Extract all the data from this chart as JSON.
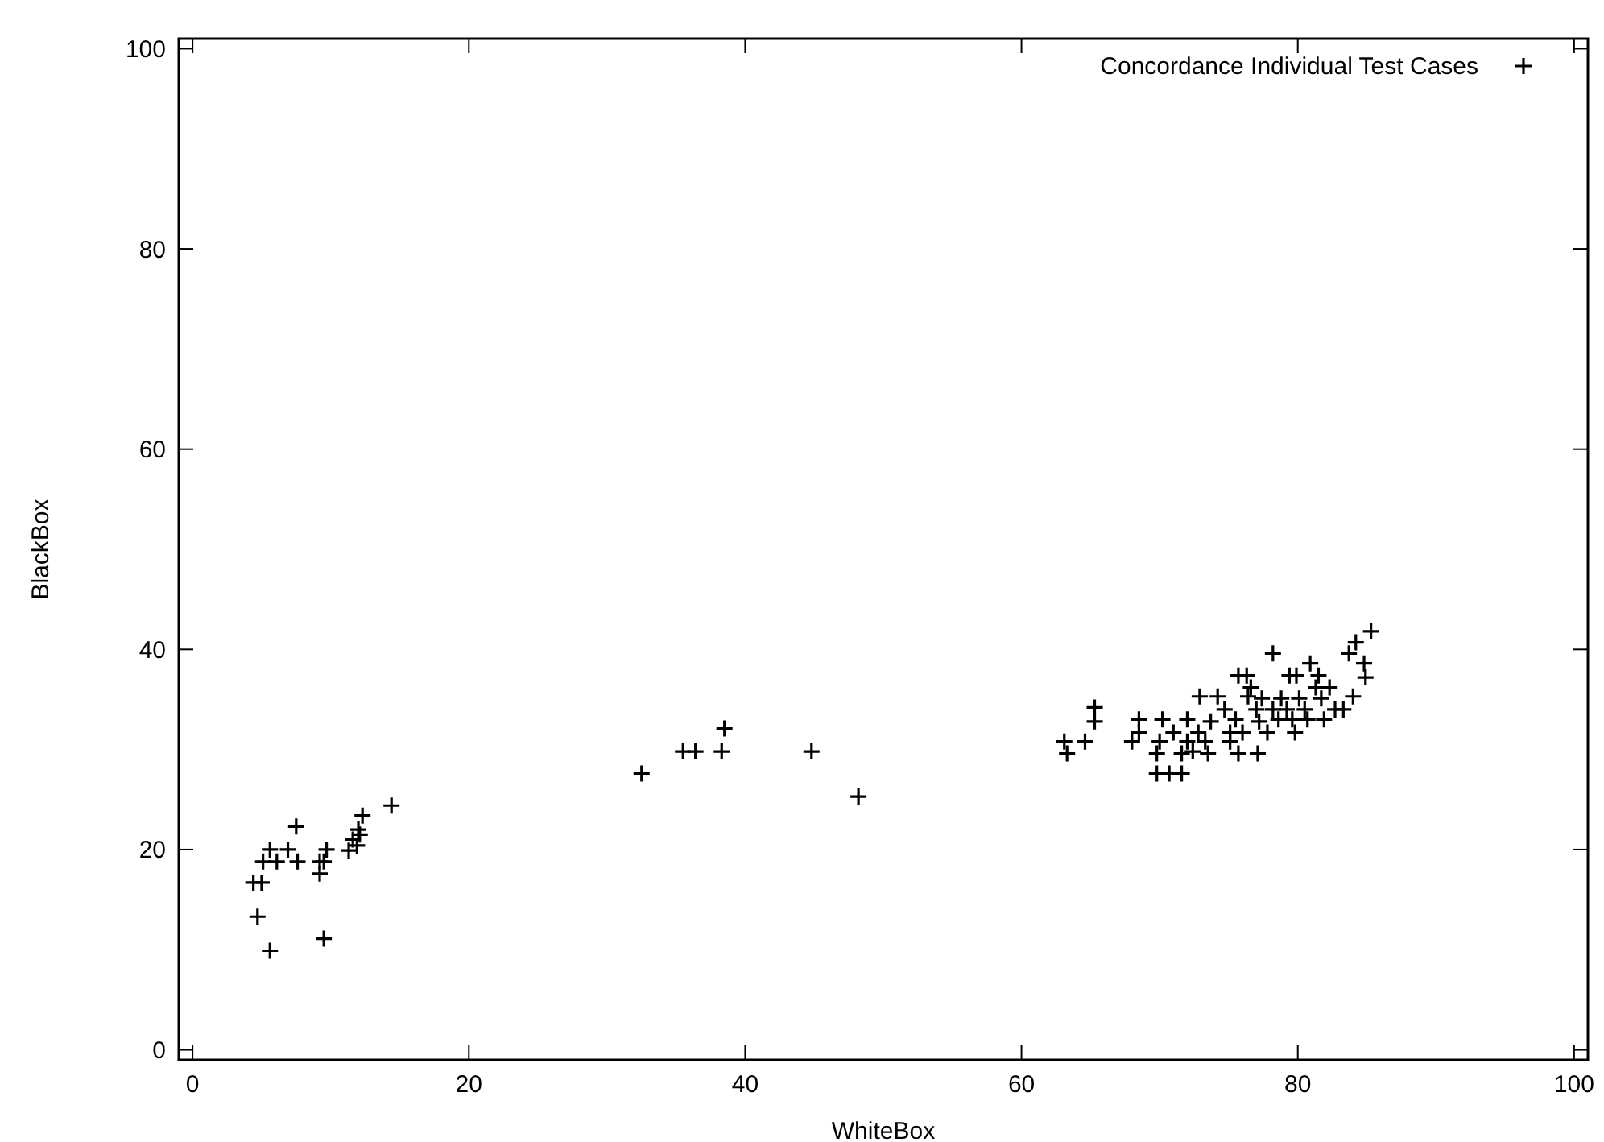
{
  "chart_data": {
    "type": "scatter",
    "xlabel": "WhiteBox",
    "ylabel": "BlackBox",
    "xlim": [
      -1,
      101
    ],
    "ylim": [
      -1,
      101
    ],
    "xticks": [
      0,
      20,
      40,
      60,
      80,
      100
    ],
    "yticks": [
      0,
      20,
      40,
      60,
      80,
      100
    ],
    "grid": false,
    "legend": "top right",
    "marker": "cross",
    "series": [
      {
        "name": "Concordance Individual Test Cases",
        "color": "#000000",
        "x": [
          4.4,
          5.0,
          4.7,
          5.6,
          5.1,
          6.1,
          5.6,
          6.9,
          7.5,
          7.6,
          9.7,
          9.2,
          9.5,
          9.2,
          9.5,
          11.3,
          11.6,
          12.0,
          12.3,
          11.9,
          12.1,
          14.4,
          32.5,
          35.5,
          36.4,
          38.3,
          38.5,
          44.8,
          48.2,
          63.1,
          63.3,
          64.6,
          65.3,
          65.3,
          68.0,
          68.5,
          68.5,
          69.8,
          70.0,
          70.2,
          69.8,
          70.7,
          71.6,
          71.0,
          71.6,
          72.0,
          72.0,
          72.4,
          72.9,
          72.8,
          73.3,
          73.5,
          73.7,
          74.2,
          74.7,
          75.1,
          75.5,
          75.7,
          75.1,
          75.7,
          76.3,
          76.0,
          76.4,
          76.6,
          77.0,
          77.1,
          77.2,
          77.4,
          77.8,
          78.2,
          78.2,
          78.6,
          78.8,
          79.2,
          79.4,
          79.6,
          79.8,
          79.9,
          80.1,
          80.5,
          80.7,
          80.9,
          81.3,
          81.5,
          81.7,
          81.9,
          82.3,
          82.7,
          83.3,
          84.0,
          83.7,
          84.2,
          84.8,
          84.9,
          85.3
        ],
        "values": [
          16.7,
          16.7,
          13.3,
          9.9,
          18.8,
          18.8,
          20.0,
          20.0,
          22.3,
          18.8,
          20.0,
          18.8,
          11.1,
          17.6,
          18.8,
          19.9,
          21.0,
          22.0,
          23.4,
          20.4,
          21.5,
          24.4,
          27.6,
          29.8,
          29.8,
          29.8,
          32.1,
          29.8,
          25.3,
          30.8,
          29.6,
          30.8,
          34.2,
          32.8,
          30.8,
          33.0,
          31.7,
          29.6,
          30.8,
          33.0,
          27.6,
          27.6,
          27.6,
          31.7,
          29.6,
          33.0,
          30.8,
          29.8,
          35.3,
          31.7,
          30.8,
          29.6,
          32.8,
          35.3,
          34.0,
          31.7,
          33.0,
          29.6,
          30.8,
          37.4,
          37.4,
          31.7,
          35.3,
          36.2,
          34.0,
          29.6,
          32.8,
          35.1,
          31.7,
          39.6,
          34.0,
          33.0,
          35.1,
          34.0,
          37.4,
          33.0,
          31.7,
          37.4,
          35.1,
          34.0,
          33.0,
          38.6,
          36.2,
          37.4,
          35.1,
          33.0,
          36.2,
          34.0,
          34.0,
          35.3,
          39.6,
          40.7,
          38.6,
          37.2,
          41.8
        ]
      }
    ]
  }
}
